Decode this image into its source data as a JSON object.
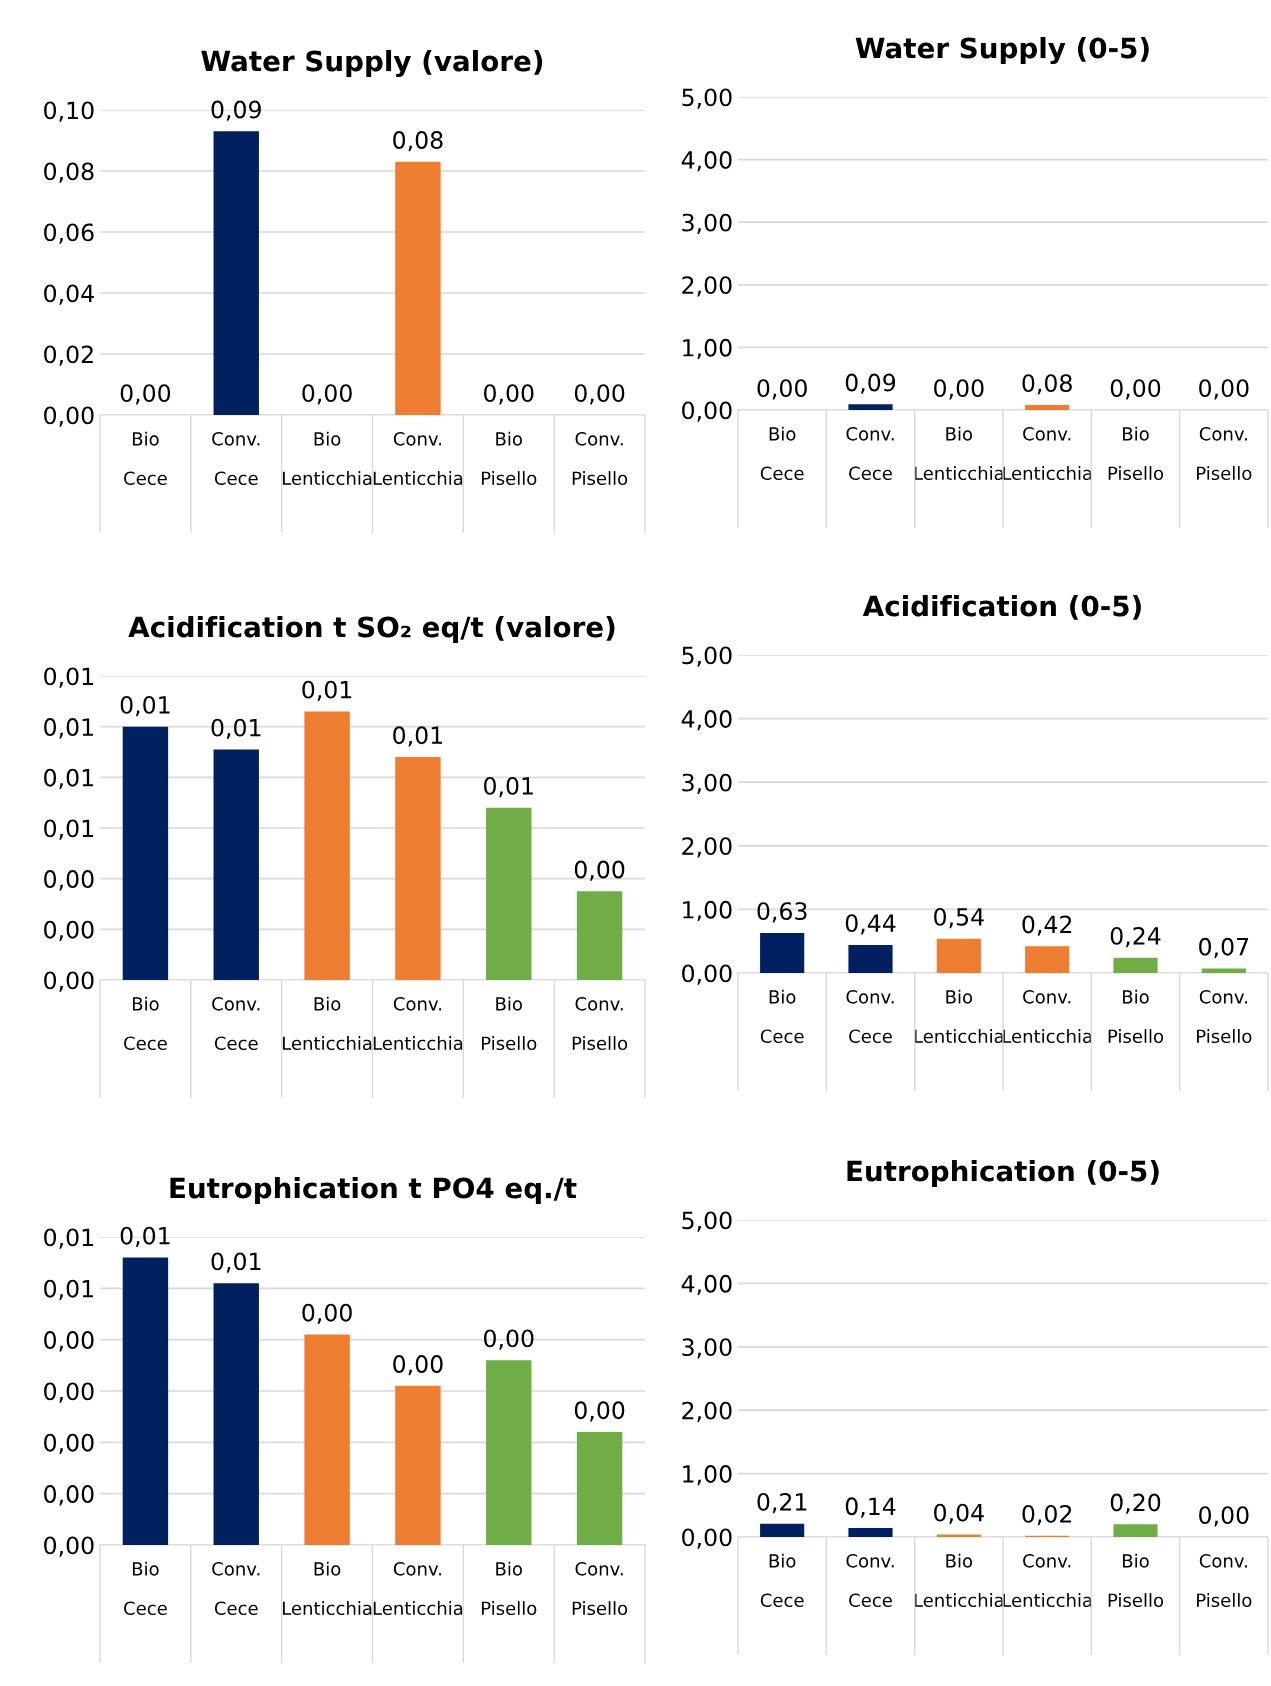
{
  "chart_data": [
    {
      "type": "bar",
      "title": "Water Supply (valore)",
      "categories": [
        "Bio\nCece",
        "Conv.\nCece",
        "Bio\nLenticchia",
        "Conv.\nLenticchia",
        "Bio\nPisello",
        "Conv.\nPisello"
      ],
      "values": [
        0,
        0.093,
        0,
        0.083,
        0,
        0
      ],
      "colors": [
        "#002060",
        "#002060",
        "#ed7d31",
        "#ed7d31",
        "#70ad47",
        "#70ad47"
      ],
      "value_labels": [
        "0,00",
        "0,09",
        "0,00",
        "0,08",
        "0,00",
        "0,00"
      ],
      "ylim": [
        0,
        0.1
      ],
      "yticks": [
        {
          "value": 0,
          "label": "0,00"
        },
        {
          "value": 0.02,
          "label": "0,02"
        },
        {
          "value": 0.04,
          "label": "0,04"
        },
        {
          "value": 0.06,
          "label": "0,06"
        },
        {
          "value": 0.08,
          "label": "0,08"
        },
        {
          "value": 0.1,
          "label": "0,10"
        }
      ],
      "grid": "y"
    },
    {
      "type": "bar",
      "title": "Water Supply (0-5)",
      "categories": [
        "Bio\nCece",
        "Conv.\nCece",
        "Bio\nLenticchia",
        "Conv.\nLenticchia",
        "Bio\nPisello",
        "Conv.\nPisello"
      ],
      "values": [
        0,
        0.09,
        0,
        0.08,
        0,
        0
      ],
      "colors": [
        "#002060",
        "#002060",
        "#ed7d31",
        "#ed7d31",
        "#70ad47",
        "#70ad47"
      ],
      "value_labels": [
        "0,00",
        "0,09",
        "0,00",
        "0,08",
        "0,00",
        "0,00"
      ],
      "ylim": [
        0,
        5
      ],
      "yticks": [
        {
          "value": 0,
          "label": "0,00"
        },
        {
          "value": 1,
          "label": "1,00"
        },
        {
          "value": 2,
          "label": "2,00"
        },
        {
          "value": 3,
          "label": "3,00"
        },
        {
          "value": 4,
          "label": "4,00"
        },
        {
          "value": 5,
          "label": "5,00"
        }
      ],
      "grid": "y"
    },
    {
      "type": "bar",
      "title": "Acidification t SO₂ eq/t (valore)",
      "categories": [
        "Bio\nCece",
        "Conv.\nCece",
        "Bio\nLenticchia",
        "Conv.\nLenticchia",
        "Bio\nPisello",
        "Conv.\nPisello"
      ],
      "values": [
        0.01,
        0.0091,
        0.0106,
        0.0088,
        0.0068,
        0.0035
      ],
      "colors": [
        "#002060",
        "#002060",
        "#ed7d31",
        "#ed7d31",
        "#70ad47",
        "#70ad47"
      ],
      "value_labels": [
        "0,01",
        "0,01",
        "0,01",
        "0,01",
        "0,01",
        "0,00"
      ],
      "ylim": [
        0,
        0.012
      ],
      "yticks": [
        {
          "value": 0,
          "label": "0,00"
        },
        {
          "value": 0.002,
          "label": "0,00"
        },
        {
          "value": 0.004,
          "label": "0,00"
        },
        {
          "value": 0.006,
          "label": "0,01"
        },
        {
          "value": 0.008,
          "label": "0,01"
        },
        {
          "value": 0.01,
          "label": "0,01"
        },
        {
          "value": 0.012,
          "label": "0,01"
        }
      ],
      "grid": "y"
    },
    {
      "type": "bar",
      "title": "Acidification (0-5)",
      "categories": [
        "Bio\nCece",
        "Conv.\nCece",
        "Bio\nLenticchia",
        "Conv.\nLenticchia",
        "Bio\nPisello",
        "Conv.\nPisello"
      ],
      "values": [
        0.63,
        0.44,
        0.54,
        0.42,
        0.24,
        0.07
      ],
      "colors": [
        "#002060",
        "#002060",
        "#ed7d31",
        "#ed7d31",
        "#70ad47",
        "#70ad47"
      ],
      "value_labels": [
        "0,63",
        "0,44",
        "0,54",
        "0,42",
        "0,24",
        "0,07"
      ],
      "ylim": [
        0,
        5
      ],
      "yticks": [
        {
          "value": 0,
          "label": "0,00"
        },
        {
          "value": 1,
          "label": "1,00"
        },
        {
          "value": 2,
          "label": "2,00"
        },
        {
          "value": 3,
          "label": "3,00"
        },
        {
          "value": 4,
          "label": "4,00"
        },
        {
          "value": 5,
          "label": "5,00"
        }
      ],
      "grid": "y"
    },
    {
      "type": "bar",
      "title": "Eutrophication t PO4 eq./t",
      "categories": [
        "Bio\nCece",
        "Conv.\nCece",
        "Bio\nLenticchia",
        "Conv.\nLenticchia",
        "Bio\nPisello",
        "Conv.\nPisello"
      ],
      "values": [
        0.0056,
        0.0051,
        0.0041,
        0.0031,
        0.0036,
        0.0022
      ],
      "colors": [
        "#002060",
        "#002060",
        "#ed7d31",
        "#ed7d31",
        "#70ad47",
        "#70ad47"
      ],
      "value_labels": [
        "0,01",
        "0,01",
        "0,00",
        "0,00",
        "0,00",
        "0,00"
      ],
      "ylim": [
        0,
        0.006
      ],
      "yticks": [
        {
          "value": 0,
          "label": "0,00"
        },
        {
          "value": 0.001,
          "label": "0,00"
        },
        {
          "value": 0.002,
          "label": "0,00"
        },
        {
          "value": 0.003,
          "label": "0,00"
        },
        {
          "value": 0.004,
          "label": "0,00"
        },
        {
          "value": 0.005,
          "label": "0,01"
        },
        {
          "value": 0.006,
          "label": "0,01"
        }
      ],
      "grid": "y"
    },
    {
      "type": "bar",
      "title": "Eutrophication (0-5)",
      "categories": [
        "Bio\nCece",
        "Conv.\nCece",
        "Bio\nLenticchia",
        "Conv.\nLenticchia",
        "Bio\nPisello",
        "Conv.\nPisello"
      ],
      "values": [
        0.21,
        0.14,
        0.04,
        0.02,
        0.2,
        0
      ],
      "colors": [
        "#002060",
        "#002060",
        "#ed7d31",
        "#ed7d31",
        "#70ad47",
        "#70ad47"
      ],
      "value_labels": [
        "0,21",
        "0,14",
        "0,04",
        "0,02",
        "0,20",
        "0,00"
      ],
      "ylim": [
        0,
        5
      ],
      "yticks": [
        {
          "value": 0,
          "label": "0,00"
        },
        {
          "value": 1,
          "label": "1,00"
        },
        {
          "value": 2,
          "label": "2,00"
        },
        {
          "value": 3,
          "label": "3,00"
        },
        {
          "value": 4,
          "label": "4,00"
        },
        {
          "value": 5,
          "label": "5,00"
        }
      ],
      "grid": "y"
    }
  ]
}
